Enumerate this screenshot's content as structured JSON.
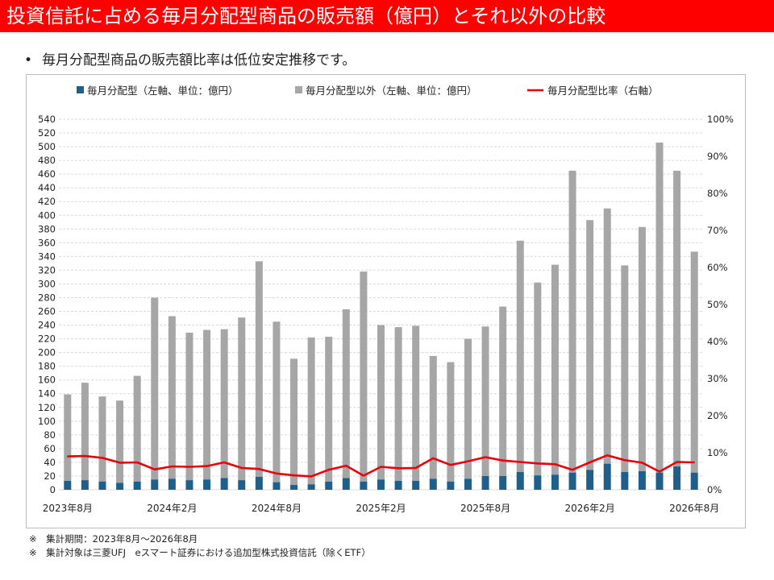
{
  "header": {
    "title": "投資信託に占める毎月分配型商品の販売額（億円）とそれ以外の比較",
    "bullet_symbol": "•",
    "bullet_text": "毎月分配型商品の販売額比率は低位安定推移です。"
  },
  "notes": [
    "※　集計期間：2023年8月～2026年8月",
    "※　集計対象は三菱UFJ　eスマート証券における追加型株式投資信託（除くETF）"
  ],
  "colors": {
    "title_bar": "#ff0000",
    "monthly": "#1f5f8b",
    "other": "#a6a6a6",
    "ratio": "#e8000b",
    "grid": "#d9d9d9"
  },
  "chart_data": {
    "type": "bar",
    "stacked": true,
    "categories": [
      "2023年8月",
      "2023年9月",
      "2023年10月",
      "2023年11月",
      "2023年12月",
      "2024年1月",
      "2024年2月",
      "2024年3月",
      "2024年4月",
      "2024年5月",
      "2024年6月",
      "2024年7月",
      "2024年8月",
      "2024年9月",
      "2024年10月",
      "2024年11月",
      "2024年12月",
      "2025年1月",
      "2025年2月",
      "2025年3月",
      "2025年4月",
      "2025年5月",
      "2025年6月",
      "2025年7月",
      "2025年8月",
      "2025年9月",
      "2025年10月",
      "2025年11月",
      "2025年12月",
      "2026年1月",
      "2026年2月",
      "2026年3月",
      "2026年4月",
      "2026年5月",
      "2026年6月",
      "2026年7月",
      "2026年8月"
    ],
    "x_tick_labels": [
      "2023年8月",
      "2024年2月",
      "2024年8月",
      "2025年2月",
      "2025年8月",
      "2026年2月",
      "2026年8月"
    ],
    "x_tick_every": 6,
    "series": [
      {
        "name": "毎月分配型（左軸、単位：億円）",
        "kind": "bar",
        "values": [
          13,
          14,
          12,
          10,
          12,
          15,
          16,
          14,
          15,
          17,
          14,
          19,
          11,
          7,
          8,
          12,
          17,
          12,
          15,
          13,
          13,
          16,
          12,
          16,
          20,
          20,
          26,
          21,
          22,
          25,
          29,
          38,
          26,
          27,
          25,
          34,
          25
        ]
      },
      {
        "name": "毎月分配型以外（左軸、単位：億円）",
        "kind": "bar",
        "values": [
          126,
          142,
          124,
          120,
          154,
          265,
          237,
          215,
          218,
          217,
          237,
          314,
          234,
          184,
          214,
          211,
          246,
          306,
          225,
          224,
          226,
          179,
          174,
          204,
          218,
          247,
          337,
          281,
          306,
          440,
          364,
          372,
          301,
          356,
          481,
          431,
          322
        ]
      },
      {
        "name": "毎月分配型比率（右軸）",
        "kind": "line",
        "axis": "right",
        "values": [
          9.0,
          9.1,
          8.6,
          7.3,
          7.4,
          5.5,
          6.3,
          6.2,
          6.4,
          7.4,
          5.9,
          5.6,
          4.4,
          3.9,
          3.6,
          5.4,
          6.5,
          3.8,
          6.2,
          5.8,
          5.9,
          8.5,
          6.7,
          7.7,
          8.8,
          7.9,
          7.5,
          7.1,
          6.9,
          5.4,
          7.4,
          9.3,
          8.0,
          7.3,
          4.9,
          7.5,
          7.4
        ]
      }
    ],
    "y_left": {
      "min": 0,
      "max": 540,
      "step": 20
    },
    "y_right": {
      "min": 0,
      "max": 100,
      "step": 10,
      "suffix": "%"
    },
    "legend_position": "top",
    "grid": true
  }
}
